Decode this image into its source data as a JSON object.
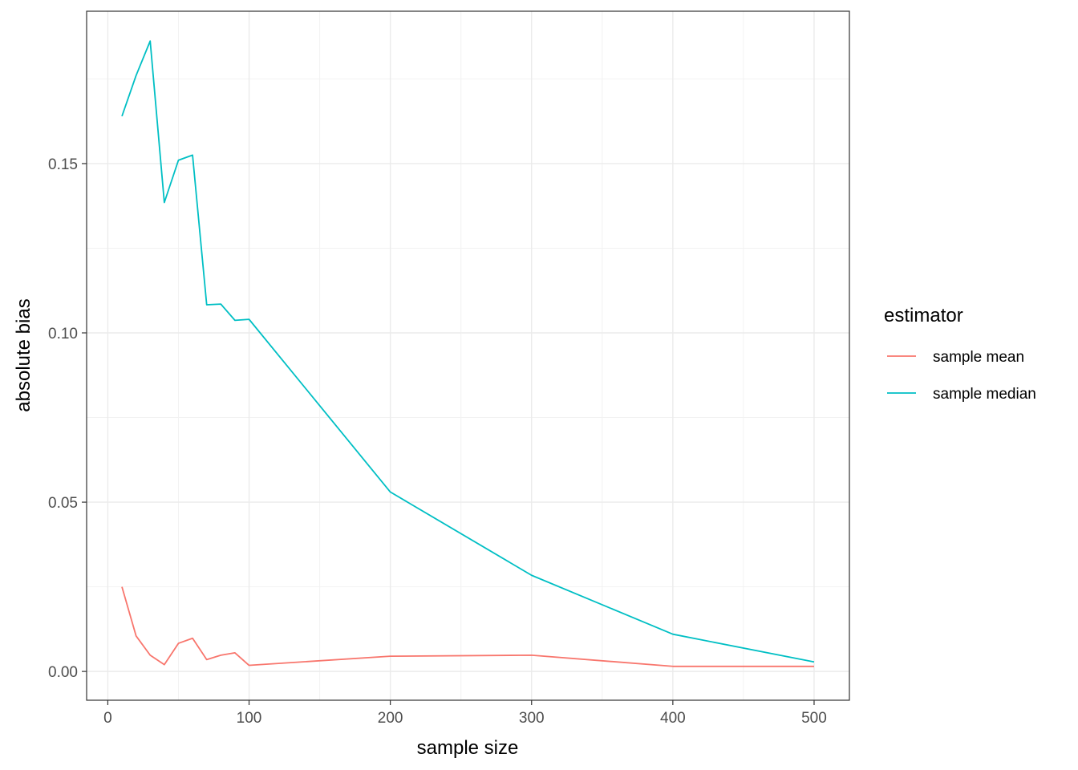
{
  "chart_data": {
    "type": "line",
    "xlabel": "sample size",
    "ylabel": "absolute bias",
    "xlim": [
      -15,
      525
    ],
    "ylim": [
      -0.0085,
      0.195
    ],
    "x_ticks": [
      0,
      100,
      200,
      300,
      400,
      500
    ],
    "x_tick_labels": [
      "0",
      "100",
      "200",
      "300",
      "400",
      "500"
    ],
    "x_minor_ticks": [
      50,
      150,
      250,
      350,
      450
    ],
    "y_ticks": [
      0.0,
      0.05,
      0.1,
      0.15
    ],
    "y_tick_labels": [
      "0.00",
      "0.05",
      "0.10",
      "0.15"
    ],
    "y_minor_ticks": [
      0.025,
      0.075,
      0.125,
      0.175
    ],
    "grid": true,
    "legend": {
      "title": "estimator",
      "placement": "right"
    },
    "x": [
      10,
      20,
      30,
      40,
      50,
      60,
      70,
      80,
      90,
      100,
      200,
      300,
      400,
      500
    ],
    "series": [
      {
        "name": "sample mean",
        "color": "#F8766D",
        "values": [
          0.025,
          0.0105,
          0.0048,
          0.002,
          0.0083,
          0.0098,
          0.0035,
          0.0048,
          0.0055,
          0.0018,
          0.0045,
          0.0048,
          0.0015,
          0.0015
        ]
      },
      {
        "name": "sample median",
        "color": "#00BFC4",
        "values": [
          0.164,
          0.176,
          0.1862,
          0.1385,
          0.151,
          0.1525,
          0.1083,
          0.1085,
          0.1037,
          0.104,
          0.053,
          0.0284,
          0.011,
          0.0028
        ]
      }
    ]
  }
}
